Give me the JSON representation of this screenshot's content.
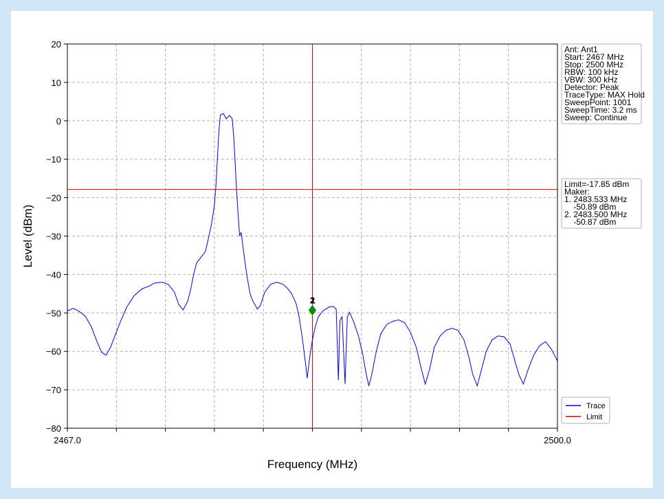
{
  "colors": {
    "trace": "#0000dd",
    "limit": "#dd0000",
    "marker": "#118811",
    "grid": "#b0b0b0",
    "page_border": "#cfe6f7"
  },
  "chart_data": {
    "type": "line",
    "xlabel": "Frequency (MHz)",
    "ylabel": "Level (dBm)",
    "xlim": [
      2467.0,
      2500.0
    ],
    "ylim": [
      -80,
      20
    ],
    "x_tick_labels": [
      "2467.0",
      "2500.0"
    ],
    "x_minor_ticks": [
      2470.3,
      2473.6,
      2476.9,
      2480.2,
      2483.5,
      2486.8,
      2490.1,
      2493.4,
      2496.7
    ],
    "y_ticks": [
      20,
      10,
      0,
      -10,
      -20,
      -30,
      -40,
      -50,
      -60,
      -70,
      -80
    ],
    "y_tick_labels": [
      "20",
      "10",
      "0",
      "−10",
      "−20",
      "−30",
      "−40",
      "−50",
      "−60",
      "−70",
      "−80"
    ],
    "grid": true,
    "legend": {
      "position": "lower-right",
      "entries": [
        {
          "label": "Trace",
          "color": "#0000dd"
        },
        {
          "label": "Limit",
          "color": "#dd0000"
        }
      ]
    },
    "series": [
      {
        "name": "Trace",
        "color": "#0000dd",
        "points": [
          [
            2467.0,
            -49.5
          ],
          [
            2467.4,
            -48.8
          ],
          [
            2467.8,
            -49.6
          ],
          [
            2468.2,
            -50.8
          ],
          [
            2468.6,
            -53.5
          ],
          [
            2469.0,
            -57.5
          ],
          [
            2469.3,
            -60.2
          ],
          [
            2469.6,
            -61.0
          ],
          [
            2469.9,
            -59.0
          ],
          [
            2470.2,
            -56.0
          ],
          [
            2470.6,
            -52.0
          ],
          [
            2471.0,
            -48.5
          ],
          [
            2471.5,
            -45.5
          ],
          [
            2472.0,
            -43.8
          ],
          [
            2472.5,
            -43.0
          ],
          [
            2472.9,
            -42.2
          ],
          [
            2473.4,
            -42.0
          ],
          [
            2473.8,
            -42.6
          ],
          [
            2474.2,
            -44.5
          ],
          [
            2474.5,
            -47.8
          ],
          [
            2474.8,
            -49.2
          ],
          [
            2475.1,
            -47.0
          ],
          [
            2475.3,
            -44.0
          ],
          [
            2475.5,
            -40.0
          ],
          [
            2475.7,
            -37.0
          ],
          [
            2476.0,
            -35.5
          ],
          [
            2476.3,
            -34.0
          ],
          [
            2476.5,
            -30.5
          ],
          [
            2476.7,
            -27.0
          ],
          [
            2476.9,
            -22.0
          ],
          [
            2477.0,
            -17.0
          ],
          [
            2477.1,
            -10.0
          ],
          [
            2477.2,
            -3.0
          ],
          [
            2477.3,
            1.5
          ],
          [
            2477.5,
            1.9
          ],
          [
            2477.7,
            0.5
          ],
          [
            2477.9,
            1.4
          ],
          [
            2478.1,
            0.6
          ],
          [
            2478.2,
            -4.0
          ],
          [
            2478.3,
            -11.0
          ],
          [
            2478.4,
            -18.5
          ],
          [
            2478.5,
            -24.5
          ],
          [
            2478.6,
            -30.0
          ],
          [
            2478.7,
            -29.0
          ],
          [
            2478.9,
            -35.0
          ],
          [
            2479.1,
            -40.5
          ],
          [
            2479.3,
            -45.0
          ],
          [
            2479.5,
            -47.0
          ],
          [
            2479.8,
            -49.0
          ],
          [
            2480.0,
            -48.0
          ],
          [
            2480.3,
            -44.5
          ],
          [
            2480.7,
            -42.5
          ],
          [
            2481.1,
            -42.0
          ],
          [
            2481.5,
            -42.5
          ],
          [
            2481.8,
            -43.5
          ],
          [
            2482.1,
            -45.0
          ],
          [
            2482.4,
            -47.5
          ],
          [
            2482.6,
            -51.0
          ],
          [
            2482.8,
            -56.0
          ],
          [
            2483.0,
            -62.0
          ],
          [
            2483.15,
            -67.0
          ],
          [
            2483.3,
            -62.0
          ],
          [
            2483.5,
            -57.0
          ],
          [
            2483.7,
            -53.5
          ],
          [
            2483.9,
            -51.0
          ],
          [
            2484.2,
            -49.5
          ],
          [
            2484.6,
            -48.5
          ],
          [
            2484.9,
            -48.3
          ],
          [
            2485.1,
            -49.0
          ],
          [
            2485.25,
            -67.5
          ],
          [
            2485.35,
            -52.0
          ],
          [
            2485.5,
            -51.0
          ],
          [
            2485.7,
            -68.5
          ],
          [
            2485.85,
            -51.0
          ],
          [
            2486.0,
            -49.8
          ],
          [
            2486.3,
            -52.5
          ],
          [
            2486.6,
            -56.0
          ],
          [
            2486.9,
            -61.0
          ],
          [
            2487.1,
            -65.5
          ],
          [
            2487.3,
            -69.0
          ],
          [
            2487.5,
            -66.0
          ],
          [
            2487.8,
            -60.0
          ],
          [
            2488.1,
            -55.5
          ],
          [
            2488.5,
            -53.0
          ],
          [
            2488.9,
            -52.2
          ],
          [
            2489.3,
            -51.8
          ],
          [
            2489.7,
            -52.5
          ],
          [
            2490.1,
            -55.0
          ],
          [
            2490.5,
            -59.0
          ],
          [
            2490.8,
            -64.0
          ],
          [
            2491.1,
            -68.5
          ],
          [
            2491.4,
            -64.5
          ],
          [
            2491.7,
            -59.0
          ],
          [
            2492.1,
            -56.0
          ],
          [
            2492.5,
            -54.5
          ],
          [
            2492.9,
            -54.0
          ],
          [
            2493.3,
            -54.5
          ],
          [
            2493.7,
            -57.0
          ],
          [
            2494.0,
            -61.0
          ],
          [
            2494.3,
            -66.0
          ],
          [
            2494.6,
            -69.0
          ],
          [
            2494.9,
            -64.5
          ],
          [
            2495.2,
            -60.0
          ],
          [
            2495.6,
            -57.0
          ],
          [
            2496.0,
            -56.0
          ],
          [
            2496.4,
            -56.2
          ],
          [
            2496.8,
            -58.0
          ],
          [
            2497.1,
            -62.0
          ],
          [
            2497.4,
            -66.0
          ],
          [
            2497.7,
            -68.5
          ],
          [
            2498.0,
            -65.0
          ],
          [
            2498.4,
            -61.0
          ],
          [
            2498.8,
            -58.5
          ],
          [
            2499.2,
            -57.5
          ],
          [
            2499.6,
            -59.5
          ],
          [
            2500.0,
            -62.5
          ]
        ]
      },
      {
        "name": "Limit",
        "color": "#dd0000",
        "points": [
          [
            2467.0,
            -17.85
          ],
          [
            2500.0,
            -17.85
          ]
        ]
      }
    ],
    "vertical_line": {
      "x": 2483.5,
      "color": "#dd0000"
    },
    "markers": [
      {
        "label": "2",
        "x": 2483.5,
        "y": -49.3
      },
      {
        "label": "1",
        "x": 2483.533,
        "y": -49.3
      }
    ],
    "info_box": [
      "Ant: Ant1",
      "Start: 2467 MHz",
      "Stop: 2500 MHz",
      "RBW: 100 kHz",
      "VBW: 300 kHz",
      "Detector: Peak",
      "TraceType: MAX Hold",
      "SweepPoint: 1001",
      "SweepTime: 3.2 ms",
      "Sweep: Continue"
    ],
    "marker_box": [
      "Limit=-17.85 dBm",
      "Maker:",
      "1. 2483.533 MHz",
      "    -50.89 dBm",
      "2. 2483.500 MHz",
      "    -50.87 dBm"
    ]
  }
}
